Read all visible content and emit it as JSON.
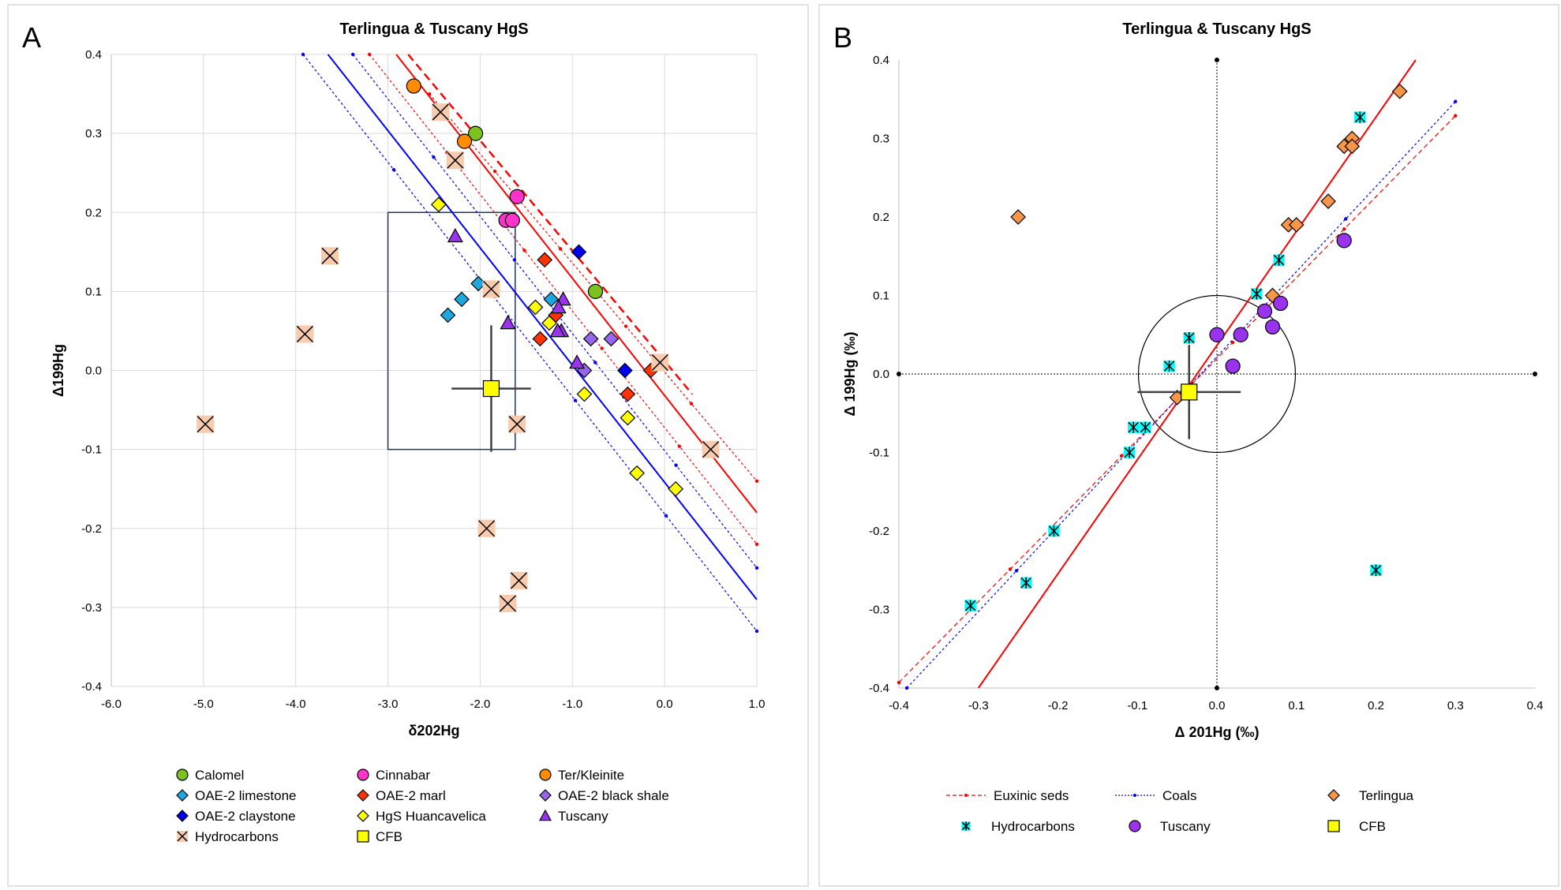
{
  "chart_data": [
    {
      "panel_label": "A",
      "type": "scatter",
      "title": "Terlingua & Tuscany HgS",
      "xlabel": "δ202Hg",
      "ylabel": "Δ199Hg",
      "xlim": [
        -6.0,
        1.0
      ],
      "ylim": [
        -0.4,
        0.4
      ],
      "xticks": [
        "-6.0",
        "-5.0",
        "-4.0",
        "-3.0",
        "-2.0",
        "-1.0",
        "0.0",
        "1.0"
      ],
      "yticks": [
        "0.4",
        "0.3",
        "0.2",
        "0.1",
        "0.0",
        "-0.1",
        "-0.2",
        "-0.3",
        "-0.4"
      ],
      "grid": true,
      "legend_placement": "bottom",
      "box": {
        "x": [
          -3.0,
          -1.62
        ],
        "y": [
          -0.1,
          0.2
        ]
      },
      "lines": [
        {
          "style": "solid",
          "color": "#ff0000",
          "points": [
            [
              -2.91,
              0.4
            ],
            [
              1.0,
              -0.18
            ]
          ]
        },
        {
          "style": "dashed-thick",
          "color": "#ff0000",
          "points": [
            [
              -2.78,
              0.4
            ],
            [
              0.3,
              -0.03
            ]
          ]
        },
        {
          "style": "dotted",
          "color": "#ff0000",
          "points": [
            [
              -3.2,
              0.4
            ],
            [
              1.0,
              -0.22
            ]
          ]
        },
        {
          "style": "dotted",
          "color": "#ff0000",
          "points": [
            [
              -2.55,
              0.35
            ],
            [
              1.0,
              -0.14
            ]
          ]
        },
        {
          "style": "solid",
          "color": "#0000ff",
          "points": [
            [
              -3.65,
              0.4
            ],
            [
              1.0,
              -0.29
            ]
          ]
        },
        {
          "style": "dotted",
          "color": "#0000ff",
          "points": [
            [
              -3.92,
              0.4
            ],
            [
              1.0,
              -0.33
            ]
          ]
        },
        {
          "style": "dotted",
          "color": "#0000ff",
          "points": [
            [
              -3.38,
              0.4
            ],
            [
              1.0,
              -0.25
            ]
          ]
        }
      ],
      "series": [
        {
          "name": "Calomel",
          "marker": "circle",
          "color": "#7dc21e",
          "points": [
            [
              -2.05,
              0.3
            ],
            [
              -0.75,
              0.1
            ]
          ]
        },
        {
          "name": "Cinnabar",
          "marker": "circle",
          "color": "#ff33cc",
          "points": [
            [
              -1.6,
              0.22
            ],
            [
              -1.72,
              0.19
            ],
            [
              -1.65,
              0.19
            ]
          ]
        },
        {
          "name": "Ter/Kleinite",
          "marker": "circle",
          "color": "#ff8c00",
          "points": [
            [
              -2.72,
              0.36
            ],
            [
              -2.17,
              0.29
            ]
          ]
        },
        {
          "name": "OAE-2 limestone",
          "marker": "diamond",
          "color": "#1ea8e0",
          "points": [
            [
              -2.02,
              0.11
            ],
            [
              -2.2,
              0.09
            ],
            [
              -2.35,
              0.07
            ],
            [
              -1.23,
              0.09
            ]
          ]
        },
        {
          "name": "OAE-2 marl",
          "marker": "diamond",
          "color": "#ff3300",
          "points": [
            [
              -1.3,
              0.14
            ],
            [
              -1.35,
              0.04
            ],
            [
              -1.18,
              0.07
            ],
            [
              -0.4,
              -0.03
            ],
            [
              -0.15,
              0.0
            ]
          ]
        },
        {
          "name": "OAE-2 black shale",
          "marker": "diamond",
          "color": "#9966ee",
          "points": [
            [
              -0.8,
              0.04
            ],
            [
              -0.58,
              0.04
            ],
            [
              -0.87,
              0.0
            ]
          ]
        },
        {
          "name": "OAE-2 claystone",
          "marker": "diamond",
          "color": "#0000ee",
          "points": [
            [
              -0.93,
              0.15
            ],
            [
              -0.43,
              0.0
            ]
          ]
        },
        {
          "name": "HgS Huancavelica",
          "marker": "diamond",
          "color": "#ffff00",
          "points": [
            [
              -2.45,
              0.21
            ],
            [
              -1.4,
              0.08
            ],
            [
              -1.25,
              0.06
            ],
            [
              -0.87,
              -0.03
            ],
            [
              -0.4,
              -0.06
            ],
            [
              -0.3,
              -0.13
            ],
            [
              0.12,
              -0.15
            ]
          ]
        },
        {
          "name": "Tuscany",
          "marker": "triangle",
          "color": "#9933ee",
          "points": [
            [
              -2.27,
              0.17
            ],
            [
              -1.7,
              0.06
            ],
            [
              -1.1,
              0.09
            ],
            [
              -1.15,
              0.08
            ],
            [
              -1.12,
              0.05
            ],
            [
              -1.16,
              0.05
            ],
            [
              -0.95,
              0.01
            ]
          ]
        },
        {
          "name": "Hydrocarbons",
          "marker": "x-square",
          "color": "#f8cbad",
          "points": [
            [
              -2.43,
              0.327
            ],
            [
              -2.27,
              0.266
            ],
            [
              -3.63,
              0.145
            ],
            [
              -3.9,
              0.046
            ],
            [
              -4.98,
              -0.068
            ],
            [
              -1.88,
              0.103
            ],
            [
              -1.6,
              -0.068
            ],
            [
              -1.93,
              -0.2
            ],
            [
              -1.58,
              -0.266
            ],
            [
              -1.7,
              -0.295
            ],
            [
              -0.05,
              0.01
            ],
            [
              0.5,
              -0.1
            ]
          ]
        },
        {
          "name": "CFB",
          "marker": "square",
          "color": "#ffff00",
          "points": [
            [
              -1.88,
              -0.023
            ]
          ],
          "xerr": 0.43,
          "yerr": 0.08
        }
      ]
    },
    {
      "panel_label": "B",
      "type": "scatter",
      "title": "Terlingua & Tuscany HgS",
      "xlabel": "Δ 201Hg (‰)",
      "ylabel": "Δ 199Hg (‰)",
      "xlim": [
        -0.4,
        0.4
      ],
      "ylim": [
        -0.4,
        0.4
      ],
      "xticks": [
        "-0.4",
        "-0.3",
        "-0.2",
        "-0.1",
        "0.0",
        "0.1",
        "0.2",
        "0.3",
        "0.4"
      ],
      "yticks": [
        "0.4",
        "0.3",
        "0.2",
        "0.1",
        "0.0",
        "-0.1",
        "-0.2",
        "-0.3",
        "-0.4"
      ],
      "grid": false,
      "legend_placement": "bottom",
      "circle": {
        "center": [
          0,
          0
        ],
        "radius": 0.1
      },
      "lines": [
        {
          "name": "Euxinic seds",
          "style": "dashed",
          "color": "#ff0000",
          "points": [
            [
              -0.4,
              -0.393
            ],
            [
              0.3,
              0.329
            ]
          ]
        },
        {
          "name": "Coals",
          "style": "dotted",
          "color": "#0000ff",
          "points": [
            [
              -0.39,
              -0.4
            ],
            [
              0.3,
              0.347
            ]
          ]
        },
        {
          "style": "solid",
          "color": "#ff0000",
          "points": [
            [
              -0.3,
              -0.4
            ],
            [
              0.25,
              0.4
            ]
          ]
        }
      ],
      "series": [
        {
          "name": "Terlingua",
          "marker": "diamond",
          "color": "#f79646",
          "points": [
            [
              -0.25,
              0.2
            ],
            [
              0.23,
              0.36
            ],
            [
              0.17,
              0.3
            ],
            [
              0.16,
              0.29
            ],
            [
              0.17,
              0.29
            ],
            [
              0.14,
              0.22
            ],
            [
              0.09,
              0.19
            ],
            [
              0.1,
              0.19
            ],
            [
              0.07,
              0.1
            ],
            [
              -0.05,
              -0.03
            ]
          ]
        },
        {
          "name": "Hydrocarbons",
          "marker": "asterisk-square",
          "color": "#00ffff",
          "points": [
            [
              0.18,
              0.327
            ],
            [
              0.078,
              0.145
            ],
            [
              0.05,
              0.102
            ],
            [
              -0.035,
              0.046
            ],
            [
              -0.06,
              0.01
            ],
            [
              -0.105,
              -0.068
            ],
            [
              -0.09,
              -0.068
            ],
            [
              -0.11,
              -0.1
            ],
            [
              -0.205,
              -0.2
            ],
            [
              -0.24,
              -0.266
            ],
            [
              -0.31,
              -0.295
            ],
            [
              0.2,
              -0.25
            ]
          ]
        },
        {
          "name": "Tuscany",
          "marker": "circle",
          "color": "#9933ee",
          "points": [
            [
              0.16,
              0.17
            ],
            [
              0.08,
              0.09
            ],
            [
              0.06,
              0.08
            ],
            [
              0.07,
              0.06
            ],
            [
              0.03,
              0.05
            ],
            [
              0.0,
              0.05
            ],
            [
              0.02,
              0.01
            ]
          ]
        },
        {
          "name": "CFB",
          "marker": "square",
          "color": "#ffff00",
          "points": [
            [
              -0.035,
              -0.023
            ]
          ],
          "xerr": 0.065,
          "yerr": 0.06
        }
      ]
    }
  ]
}
